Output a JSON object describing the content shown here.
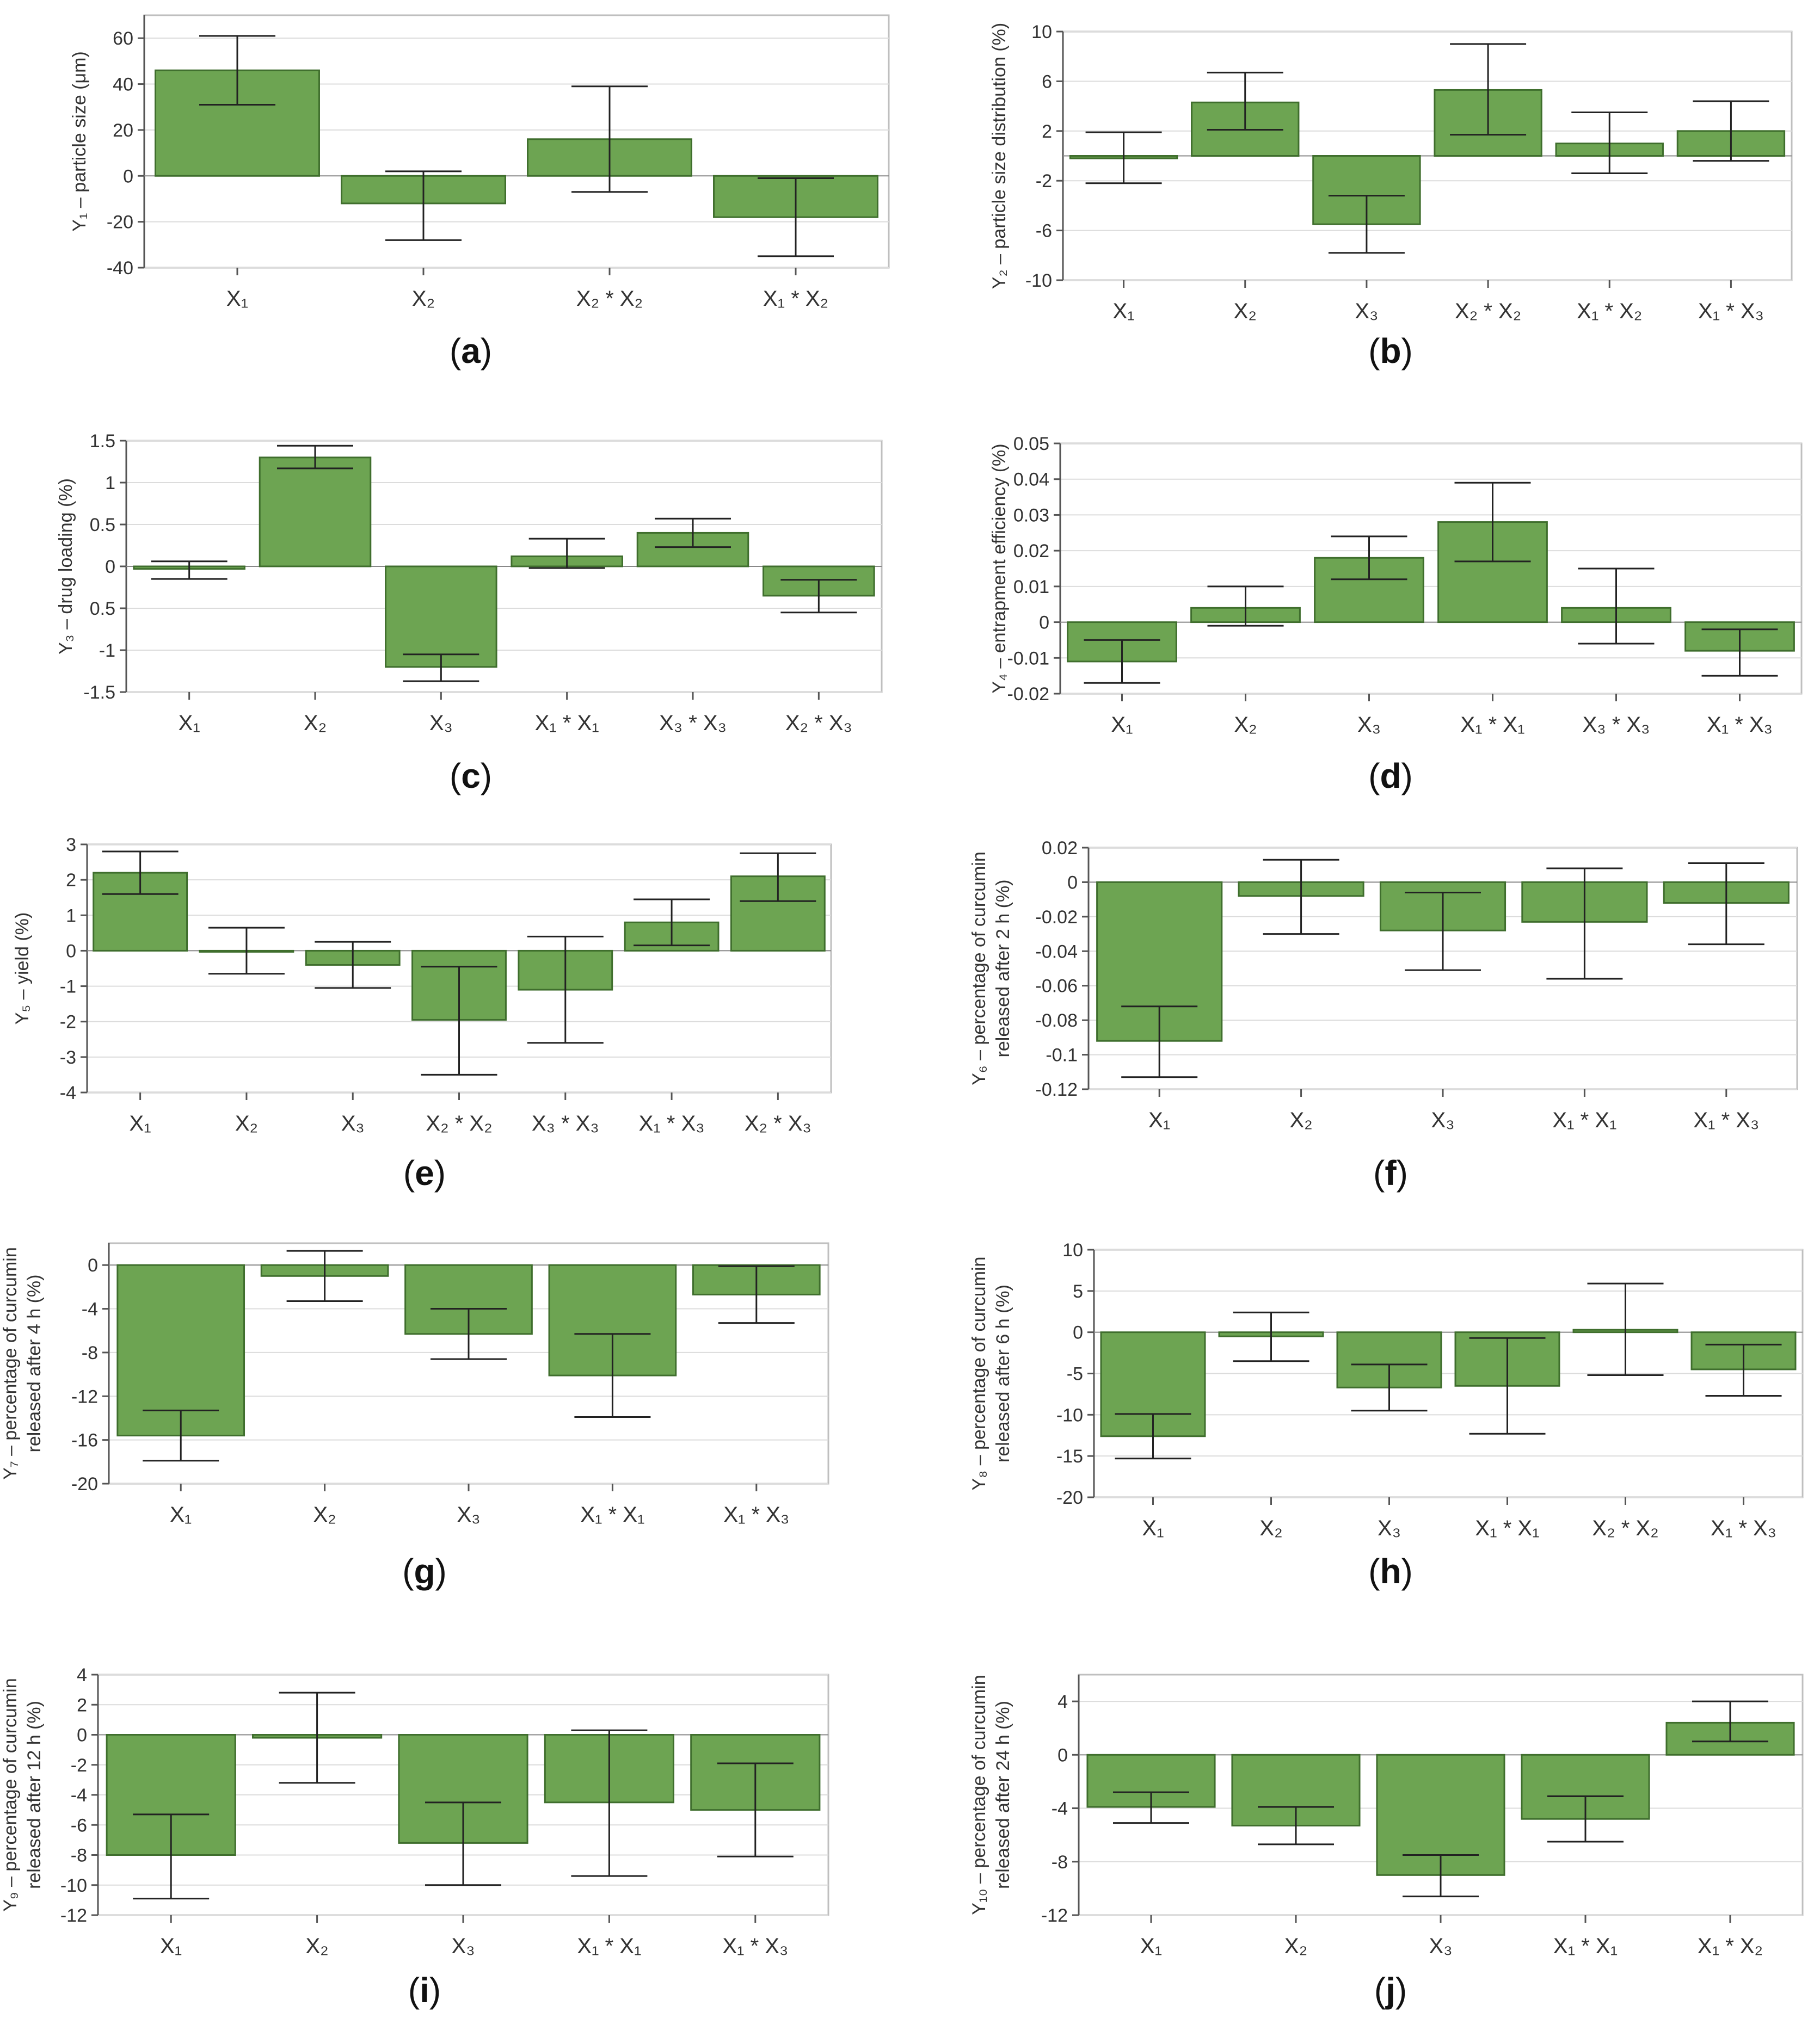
{
  "colors": {
    "bar_fill": "#6da452",
    "bar_stroke": "#3f6e2d",
    "error_bar": "#222222",
    "grid": "#dcdcdc",
    "axis": "#555555",
    "text": "#333333"
  },
  "chart_data": [
    {
      "panel": "a",
      "caption": "a",
      "type": "bar",
      "ylabel": "Y₁ – particle size (μm)",
      "ylim": [
        -40,
        70
      ],
      "yticks": [
        "60",
        "40",
        "20",
        "0",
        "-20",
        "-40"
      ],
      "grid": true,
      "categories": [
        "X₁",
        "X₂",
        "X₂ * X₂",
        "X₁ * X₂"
      ],
      "values": [
        46,
        -12,
        16,
        -18
      ],
      "error_low": [
        31,
        -28,
        -7,
        -35
      ],
      "error_high": [
        61,
        2,
        39,
        -1
      ]
    },
    {
      "panel": "b",
      "caption": "b",
      "type": "bar",
      "ylabel": "Y₂ – particle size distribution (%)",
      "ylim": [
        -10,
        10
      ],
      "yticks": [
        "10",
        "6",
        "2",
        "-2",
        "-6",
        "-10"
      ],
      "grid": true,
      "categories": [
        "X₁",
        "X₂",
        "X₃",
        "X₂ * X₂",
        "X₁ * X₂",
        "X₁ * X₃"
      ],
      "values": [
        -0.2,
        4.3,
        -5.5,
        5.3,
        1.0,
        2.0
      ],
      "error_low": [
        -2.2,
        2.1,
        -7.8,
        1.7,
        -1.4,
        -0.4
      ],
      "error_high": [
        1.9,
        6.7,
        -3.2,
        9.0,
        3.5,
        4.4
      ]
    },
    {
      "panel": "c",
      "caption": "c",
      "type": "bar",
      "ylabel": "Y₃ – drug loading (%)",
      "ylim": [
        -1.5,
        1.5
      ],
      "yticks": [
        "1.5",
        "1",
        "0.5",
        "0",
        "0.5",
        "-1",
        "-1.5"
      ],
      "grid": true,
      "categories": [
        "X₁",
        "X₂",
        "X₃",
        "X₁ * X₁",
        "X₃ * X₃",
        "X₂ * X₃"
      ],
      "values": [
        -0.03,
        1.3,
        -1.2,
        0.12,
        0.4,
        -0.35
      ],
      "error_low": [
        -0.15,
        1.17,
        -1.37,
        -0.02,
        0.23,
        -0.55
      ],
      "error_high": [
        0.06,
        1.44,
        -1.05,
        0.33,
        0.57,
        -0.16
      ]
    },
    {
      "panel": "d",
      "caption": "d",
      "type": "bar",
      "ylabel": "Y₄ – entrapment efficiency (%)",
      "ylim": [
        -0.02,
        0.05
      ],
      "yticks": [
        "0.05",
        "0.04",
        "0.03",
        "0.02",
        "0.01",
        "0",
        "-0.01",
        "-0.02"
      ],
      "grid": true,
      "categories": [
        "X₁",
        "X₂",
        "X₃",
        "X₁ * X₁",
        "X₃ * X₃",
        "X₁ * X₃"
      ],
      "values": [
        -0.011,
        0.004,
        0.018,
        0.028,
        0.004,
        -0.008
      ],
      "error_low": [
        -0.017,
        -0.001,
        0.012,
        0.017,
        -0.006,
        -0.015
      ],
      "error_high": [
        -0.005,
        0.01,
        0.024,
        0.039,
        0.015,
        -0.002
      ]
    },
    {
      "panel": "e",
      "caption": "e",
      "type": "bar",
      "ylabel": "Y₅ – yield (%)",
      "ylim": [
        -4,
        3
      ],
      "yticks": [
        "3",
        "2",
        "1",
        "0",
        "-1",
        "-2",
        "-3",
        "-4"
      ],
      "grid": true,
      "categories": [
        "X₁",
        "X₂",
        "X₃",
        "X₂ * X₂",
        "X₃ * X₃",
        "X₁ * X₃",
        "X₂ * X₃"
      ],
      "values": [
        2.2,
        0.0,
        -0.4,
        -1.95,
        -1.1,
        0.8,
        2.1
      ],
      "error_low": [
        1.6,
        -0.65,
        -1.05,
        -3.5,
        -2.6,
        0.15,
        1.4
      ],
      "error_high": [
        2.8,
        0.65,
        0.25,
        -0.45,
        0.4,
        1.45,
        2.75
      ]
    },
    {
      "panel": "f",
      "caption": "f",
      "type": "bar",
      "ylabel": [
        "Y₆ – percentage of curcumin",
        "released after 2 h (%)"
      ],
      "ylim": [
        -0.12,
        0.02
      ],
      "yticks": [
        "0.02",
        "0",
        "-0.02",
        "-0.04",
        "-0.06",
        "-0.08",
        "-0.1",
        "-0.12"
      ],
      "grid": true,
      "categories": [
        "X₁",
        "X₂",
        "X₃",
        "X₁ * X₁",
        "X₁ * X₃"
      ],
      "values": [
        -0.092,
        -0.008,
        -0.028,
        -0.023,
        -0.012
      ],
      "error_low": [
        -0.113,
        -0.03,
        -0.051,
        -0.056,
        -0.036
      ],
      "error_high": [
        -0.072,
        0.013,
        -0.006,
        0.008,
        0.011
      ]
    },
    {
      "panel": "g",
      "caption": "g",
      "type": "bar",
      "ylabel": [
        "Y₇ – percentage of curcumin",
        "released after 4 h (%)"
      ],
      "ylim": [
        -20,
        2
      ],
      "yticks": [
        "0",
        "-4",
        "-8",
        "-12",
        "-16",
        "-20"
      ],
      "grid": true,
      "categories": [
        "X₁",
        "X₂",
        "X₃",
        "X₁ * X₁",
        "X₁ * X₃"
      ],
      "values": [
        -15.6,
        -1.0,
        -6.3,
        -10.1,
        -2.7
      ],
      "error_low": [
        -17.9,
        -3.3,
        -8.6,
        -13.9,
        -5.3
      ],
      "error_high": [
        -13.3,
        1.3,
        -4.0,
        -6.3,
        -0.1
      ]
    },
    {
      "panel": "h",
      "caption": "h",
      "type": "bar",
      "ylabel": [
        "Y₈ – percentage of curcumin",
        "released after 6 h (%)"
      ],
      "ylim": [
        -20,
        10
      ],
      "yticks": [
        "10",
        "5",
        "0",
        "-5",
        "-10",
        "-15",
        "-20"
      ],
      "grid": true,
      "categories": [
        "X₁",
        "X₂",
        "X₃",
        "X₁ * X₁",
        "X₂ * X₂",
        "X₁ * X₃"
      ],
      "values": [
        -12.6,
        -0.5,
        -6.7,
        -6.5,
        0.3,
        -4.5
      ],
      "error_low": [
        -15.3,
        -3.5,
        -9.5,
        -12.3,
        -5.2,
        -7.7
      ],
      "error_high": [
        -9.9,
        2.4,
        -3.9,
        -0.7,
        5.9,
        -1.5
      ]
    },
    {
      "panel": "i",
      "caption": "i",
      "type": "bar",
      "ylabel": [
        "Y₉ – percentage of curcumin",
        "released after 12 h (%)"
      ],
      "ylim": [
        -12,
        4
      ],
      "yticks": [
        "4",
        "2",
        "0",
        "-2",
        "-4",
        "-6",
        "-8",
        "-10",
        "-12"
      ],
      "grid": true,
      "categories": [
        "X₁",
        "X₂",
        "X₃",
        "X₁ * X₁",
        "X₁ * X₃"
      ],
      "values": [
        -8.0,
        -0.2,
        -7.2,
        -4.5,
        -5.0
      ],
      "error_low": [
        -10.9,
        -3.2,
        -10.0,
        -9.4,
        -8.1
      ],
      "error_high": [
        -5.3,
        2.8,
        -4.5,
        0.3,
        -1.9
      ]
    },
    {
      "panel": "j",
      "caption": "j",
      "type": "bar",
      "ylabel": [
        "Y₁₀ – percentage of curcumin",
        "released after 24 h (%)"
      ],
      "ylim": [
        -12,
        6
      ],
      "yticks": [
        "4",
        "0",
        "-4",
        "-8",
        "-12"
      ],
      "grid": true,
      "categories": [
        "X₁",
        "X₂",
        "X₃",
        "X₁ * X₁",
        "X₁ * X₂"
      ],
      "values": [
        -3.9,
        -5.3,
        -9.0,
        -4.8,
        2.4
      ],
      "error_low": [
        -5.1,
        -6.7,
        -10.6,
        -6.5,
        1.0
      ],
      "error_high": [
        -2.8,
        -3.9,
        -7.5,
        -3.1,
        4.0
      ]
    }
  ]
}
